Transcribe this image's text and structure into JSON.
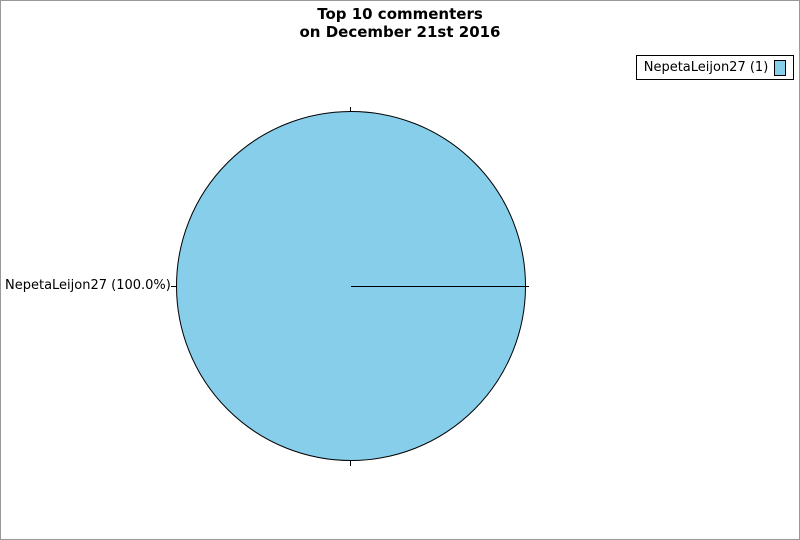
{
  "frame": {
    "background": "#FFFFFF",
    "border_color": "#999999"
  },
  "chart_data": {
    "type": "pie",
    "title": "Top 10 commenters",
    "subtitle": "on December 21st 2016",
    "title_lines": [
      "Top 10 commenters",
      "on December 21st 2016"
    ],
    "slices": [
      {
        "label": "NepetaLeijon27",
        "value": 1,
        "percent": 100.0,
        "color": "#87CEEB"
      }
    ],
    "outline_color": "#000000",
    "slice_start_angle_deg": 0,
    "labels": [
      {
        "text": "NepetaLeijon27 (100.0%)",
        "side": "left"
      }
    ],
    "legend": {
      "position": "top-right",
      "entries": [
        {
          "label": "NepetaLeijon27 (1)",
          "color": "#87CEEB"
        }
      ]
    }
  }
}
